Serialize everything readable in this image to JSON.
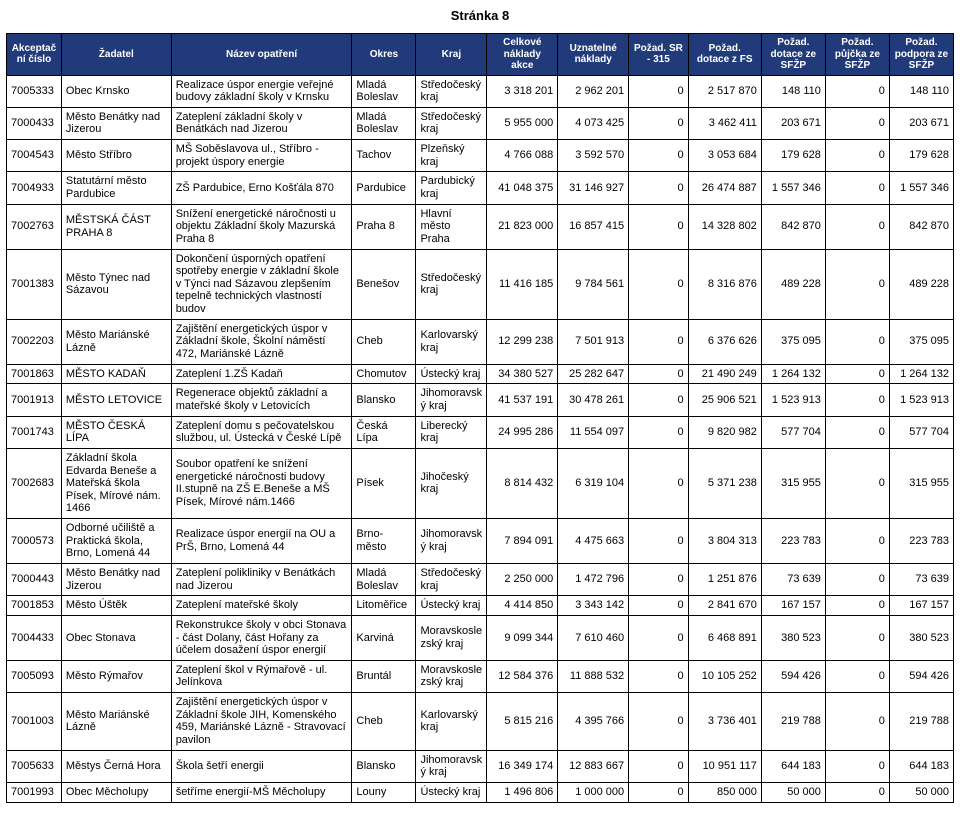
{
  "page_title": "Stránka 8",
  "header_bg": "#213a7a",
  "header_fg": "#ffffff",
  "columns": [
    "Akceptační číslo",
    "Žadatel",
    "Název opatření",
    "Okres",
    "Kraj",
    "Celkové náklady akce",
    "Uznatelné náklady",
    "Požad. SR - 315",
    "Požad. dotace z FS",
    "Požad. dotace ze SFŽP",
    "Požad. půjčka ze SFŽP",
    "Požad. podpora ze SFŽP"
  ],
  "rows": [
    {
      "c": [
        "7005333",
        "Obec Krnsko",
        "Realizace úspor energie veřejné budovy základní školy v Krnsku",
        "Mladá Boleslav",
        "Středočeský kraj",
        "3 318 201",
        "2 962 201",
        "0",
        "2 517 870",
        "148 110",
        "0",
        "148 110"
      ]
    },
    {
      "c": [
        "7000433",
        "Město Benátky nad Jizerou",
        "Zateplení základní školy v Benátkách nad Jizerou",
        "Mladá Boleslav",
        "Středočeský kraj",
        "5 955 000",
        "4 073 425",
        "0",
        "3 462 411",
        "203 671",
        "0",
        "203 671"
      ]
    },
    {
      "c": [
        "7004543",
        "Město Stříbro",
        "MŠ Soběslavova ul., Stříbro - projekt úspory energie",
        "Tachov",
        "Plzeňský kraj",
        "4 766 088",
        "3 592 570",
        "0",
        "3 053 684",
        "179 628",
        "0",
        "179 628"
      ]
    },
    {
      "c": [
        "7004933",
        "Statutární město Pardubice",
        "ZŠ Pardubice, Erno Košťála 870",
        "Pardubice",
        "Pardubický kraj",
        "41 048 375",
        "31 146 927",
        "0",
        "26 474 887",
        "1 557 346",
        "0",
        "1 557 346"
      ]
    },
    {
      "c": [
        "7002763",
        "MĚSTSKÁ ČÁST PRAHA 8",
        "Snížení energetické náročnosti u objektu Základní školy Mazurská Praha 8",
        "Praha 8",
        "Hlavní město Praha",
        "21 823 000",
        "16 857 415",
        "0",
        "14 328 802",
        "842 870",
        "0",
        "842 870"
      ]
    },
    {
      "c": [
        "7001383",
        "Město Týnec nad Sázavou",
        "Dokončení úsporných opatření spotřeby energie v základní škole v Týnci nad Sázavou zlepšením tepelně technických vlastností budov",
        "Benešov",
        "Středočeský kraj",
        "11 416 185",
        "9 784 561",
        "0",
        "8 316 876",
        "489 228",
        "0",
        "489 228"
      ]
    },
    {
      "c": [
        "7002203",
        "Město Mariánské Lázně",
        "Zajištění energetických úspor v Základní škole, Školní náměstí 472, Mariánské Lázně",
        "Cheb",
        "Karlovarský kraj",
        "12 299 238",
        "7 501 913",
        "0",
        "6 376 626",
        "375 095",
        "0",
        "375 095"
      ]
    },
    {
      "c": [
        "7001863",
        "MĚSTO KADAŇ",
        "Zateplení 1.ZŠ Kadaň",
        "Chomutov",
        "Ústecký kraj",
        "34 380 527",
        "25 282 647",
        "0",
        "21 490 249",
        "1 264 132",
        "0",
        "1 264 132"
      ]
    },
    {
      "c": [
        "7001913",
        "MĚSTO LETOVICE",
        "Regenerace objektů základní a mateřské školy v Letovicích",
        "Blansko",
        "Jihomoravsk ý kraj",
        "41 537 191",
        "30 478 261",
        "0",
        "25 906 521",
        "1 523 913",
        "0",
        "1 523 913"
      ]
    },
    {
      "c": [
        "7001743",
        "MĚSTO ČESKÁ LÍPA",
        "Zateplení domu s pečovatelskou službou, ul. Ústecká v České Lípě",
        "Česká Lípa",
        "Liberecký kraj",
        "24 995 286",
        "11 554 097",
        "0",
        "9 820 982",
        "577 704",
        "0",
        "577 704"
      ]
    },
    {
      "c": [
        "7002683",
        "Základní škola Edvarda Beneše a Mateřská škola Písek, Mírové nám. 1466",
        "Soubor opatření ke snížení energetické náročnosti budovy II.stupně na ZŠ E.Beneše a MŠ Písek, Mírové nám.1466",
        "Písek",
        "Jihočeský kraj",
        "8 814 432",
        "6 319 104",
        "0",
        "5 371 238",
        "315 955",
        "0",
        "315 955"
      ]
    },
    {
      "c": [
        "7000573",
        "Odborné učiliště a Praktická škola, Brno, Lomená 44",
        "Realizace úspor energií na OU a PrŠ, Brno, Lomená 44",
        "Brno-město",
        "Jihomoravsk ý kraj",
        "7 894 091",
        "4 475 663",
        "0",
        "3 804 313",
        "223 783",
        "0",
        "223 783"
      ]
    },
    {
      "c": [
        "7000443",
        "Město Benátky nad Jizerou",
        "Zateplení polikliniky v Benátkách nad Jizerou",
        "Mladá Boleslav",
        "Středočeský kraj",
        "2 250 000",
        "1 472 796",
        "0",
        "1 251 876",
        "73 639",
        "0",
        "73 639"
      ]
    },
    {
      "c": [
        "7001853",
        "Město Úštěk",
        "Zateplení mateřské školy",
        "Litoměřice",
        "Ústecký kraj",
        "4 414 850",
        "3 343 142",
        "0",
        "2 841 670",
        "167 157",
        "0",
        "167 157"
      ]
    },
    {
      "c": [
        "7004433",
        "Obec Stonava",
        "Rekonstrukce školy v obci Stonava - část Dolany, část Hořany za účelem dosažení úspor energií",
        "Karviná",
        "Moravskosle zský kraj",
        "9 099 344",
        "7 610 460",
        "0",
        "6 468 891",
        "380 523",
        "0",
        "380 523"
      ]
    },
    {
      "c": [
        "7005093",
        "Město Rýmařov",
        "Zateplení škol v Rýmařově - ul. Jelínkova",
        "Bruntál",
        "Moravskosle zský kraj",
        "12 584 376",
        "11 888 532",
        "0",
        "10 105 252",
        "594 426",
        "0",
        "594 426"
      ]
    },
    {
      "c": [
        "7001003",
        "Město Mariánské Lázně",
        "Zajištění energetických úspor v Základní škole JIH, Komenského 459, Mariánské Lázně - Stravovací pavilon",
        "Cheb",
        "Karlovarský kraj",
        "5 815 216",
        "4 395 766",
        "0",
        "3 736 401",
        "219 788",
        "0",
        "219 788"
      ]
    },
    {
      "c": [
        "7005633",
        "Městys Černá Hora",
        "Škola šetří energii",
        "Blansko",
        "Jihomoravsk ý kraj",
        "16 349 174",
        "12 883 667",
        "0",
        "10 951 117",
        "644 183",
        "0",
        "644 183"
      ]
    },
    {
      "c": [
        "7001993",
        "Obec Měcholupy",
        "šetříme energií-MŠ Měcholupy",
        "Louny",
        "Ústecký kraj",
        "1 496 806",
        "1 000 000",
        "0",
        "850 000",
        "50 000",
        "0",
        "50 000"
      ]
    }
  ]
}
